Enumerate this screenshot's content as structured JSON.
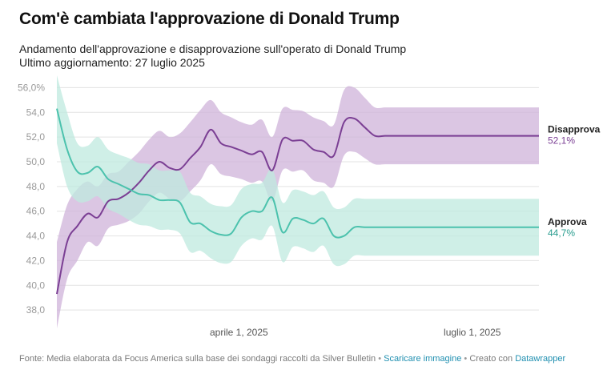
{
  "header": {
    "title": "Com'è cambiata l'approvazione di Donald Trump",
    "subtitle": "Andamento dell'approvazione e disapprovazione sull'operato di Donald Trump",
    "updated": "Ultimo aggiornamento: 27 luglio 2025"
  },
  "footer": {
    "source": "Fonte: Media elaborata da Focus America sulla base dei sondaggi raccolti da Silver Bulletin",
    "separator": "•",
    "download_link": "Scaricare immagine",
    "created_with": "Creato con",
    "datawrapper_link": "Datawrapper"
  },
  "colors": {
    "approve_line": "#4cc2ad",
    "approve_band": "#bfe9df",
    "disapprove_line": "#7b3f94",
    "disapprove_band": "#cfb3d9",
    "approve_label": "#2a9d8f",
    "disapprove_label": "#7b3f94"
  },
  "chart_data": {
    "type": "line",
    "ylim": [
      36,
      57
    ],
    "y_ticks": [
      38,
      40,
      42,
      44,
      46,
      48,
      50,
      52,
      54,
      56
    ],
    "y_tick_labels": [
      "38,0",
      "40,0",
      "42,0",
      "44,0",
      "46,0",
      "48,0",
      "50,0",
      "52,0",
      "54,0",
      "56,0%"
    ],
    "x_range": [
      "2025-01-20",
      "2025-07-27"
    ],
    "x_ticks": [
      {
        "date": "2025-04-01",
        "label": "aprile 1, 2025"
      },
      {
        "date": "2025-07-01",
        "label": "luglio 1, 2025"
      }
    ],
    "x": [
      "2025-01-20",
      "2025-01-24",
      "2025-01-28",
      "2025-02-01",
      "2025-02-05",
      "2025-02-09",
      "2025-02-13",
      "2025-02-17",
      "2025-02-21",
      "2025-02-25",
      "2025-03-01",
      "2025-03-05",
      "2025-03-09",
      "2025-03-13",
      "2025-03-17",
      "2025-03-21",
      "2025-03-25",
      "2025-03-29",
      "2025-04-02",
      "2025-04-06",
      "2025-04-10",
      "2025-04-14",
      "2025-04-18",
      "2025-04-22",
      "2025-04-26",
      "2025-04-30",
      "2025-05-04",
      "2025-05-08",
      "2025-05-12",
      "2025-05-16",
      "2025-05-20",
      "2025-05-24",
      "2025-05-28",
      "2025-06-01",
      "2025-06-05",
      "2025-06-09",
      "2025-06-13",
      "2025-06-17",
      "2025-06-21",
      "2025-06-25",
      "2025-06-29",
      "2025-07-03",
      "2025-07-07",
      "2025-07-11",
      "2025-07-15",
      "2025-07-19",
      "2025-07-23",
      "2025-07-27"
    ],
    "series": [
      {
        "name": "Disapprova",
        "values": [
          39.3,
          43.5,
          44.8,
          45.8,
          45.5,
          46.8,
          47.0,
          47.5,
          48.3,
          49.3,
          50.0,
          49.5,
          49.4,
          50.3,
          51.2,
          52.6,
          51.5,
          51.2,
          50.9,
          50.6,
          50.8,
          49.3,
          51.8,
          51.7,
          51.7,
          51.0,
          50.8,
          50.5,
          53.2,
          53.5,
          52.8,
          52.1,
          52.1,
          52.1,
          52.1,
          52.1,
          52.1,
          52.1,
          52.1,
          52.1,
          52.1,
          52.1,
          52.1,
          52.1,
          52.1,
          52.1,
          52.1,
          52.1
        ],
        "upper": [
          43.5,
          46.5,
          47.8,
          48.4,
          48.0,
          49.0,
          49.2,
          50.0,
          50.8,
          51.8,
          52.5,
          52.0,
          52.3,
          53.2,
          54.2,
          55.0,
          54.0,
          53.6,
          53.2,
          53.0,
          53.4,
          52.0,
          54.3,
          54.2,
          54.1,
          53.6,
          53.3,
          53.0,
          55.8,
          56.0,
          55.2,
          54.4,
          54.4,
          54.4,
          54.4,
          54.4,
          54.4,
          54.4,
          54.4,
          54.4,
          54.4,
          54.4,
          54.4,
          54.4,
          54.4,
          54.4,
          54.4,
          54.4
        ],
        "lower": [
          36.5,
          40.5,
          42.0,
          43.5,
          43.2,
          44.6,
          44.9,
          45.2,
          45.8,
          46.8,
          47.5,
          47.0,
          46.8,
          47.6,
          48.5,
          49.8,
          49.0,
          48.8,
          48.6,
          48.3,
          48.4,
          46.8,
          49.3,
          49.2,
          49.3,
          48.5,
          48.3,
          48.0,
          50.5,
          50.8,
          50.3,
          49.8,
          49.8,
          49.8,
          49.8,
          49.8,
          49.8,
          49.8,
          49.8,
          49.8,
          49.8,
          49.8,
          49.8,
          49.8,
          49.8,
          49.8,
          49.8,
          49.8
        ]
      },
      {
        "name": "Approva",
        "values": [
          54.3,
          51.0,
          49.2,
          49.1,
          49.6,
          48.6,
          48.2,
          47.8,
          47.4,
          47.3,
          46.9,
          46.9,
          46.7,
          45.1,
          45.0,
          44.4,
          44.1,
          44.2,
          45.5,
          46.0,
          46.0,
          47.1,
          44.3,
          45.4,
          45.3,
          45.0,
          45.4,
          44.0,
          44.0,
          44.7,
          44.7,
          44.7,
          44.7,
          44.7,
          44.7,
          44.7,
          44.7,
          44.7,
          44.7,
          44.7,
          44.7,
          44.7,
          44.7,
          44.7,
          44.7,
          44.7,
          44.7,
          44.7
        ],
        "upper": [
          57.0,
          54.0,
          51.5,
          51.3,
          52.0,
          51.0,
          50.6,
          50.3,
          49.9,
          49.8,
          49.3,
          49.3,
          49.2,
          47.5,
          47.2,
          46.6,
          46.4,
          46.5,
          47.8,
          48.2,
          48.3,
          49.4,
          46.7,
          47.7,
          47.6,
          47.3,
          47.6,
          46.3,
          46.3,
          47.0,
          47.0,
          47.0,
          47.0,
          47.0,
          47.0,
          47.0,
          47.0,
          47.0,
          47.0,
          47.0,
          47.0,
          47.0,
          47.0,
          47.0,
          47.0,
          47.0,
          47.0,
          47.0
        ],
        "lower": [
          51.5,
          48.0,
          46.8,
          46.8,
          47.2,
          46.2,
          45.8,
          45.3,
          44.9,
          44.8,
          44.5,
          44.5,
          44.2,
          42.7,
          42.8,
          42.2,
          41.8,
          41.9,
          43.2,
          43.8,
          43.7,
          44.8,
          41.9,
          43.1,
          43.0,
          42.7,
          43.2,
          41.7,
          41.7,
          42.4,
          42.4,
          42.4,
          42.4,
          42.4,
          42.4,
          42.4,
          42.4,
          42.4,
          42.4,
          42.4,
          42.4,
          42.4,
          42.4,
          42.4,
          42.4,
          42.4,
          42.4,
          42.4
        ]
      }
    ],
    "end_labels": [
      {
        "series": "Disapprova",
        "label": "Disapprova",
        "value": "52,1%"
      },
      {
        "series": "Approva",
        "label": "Approva",
        "value": "44,7%"
      }
    ]
  }
}
